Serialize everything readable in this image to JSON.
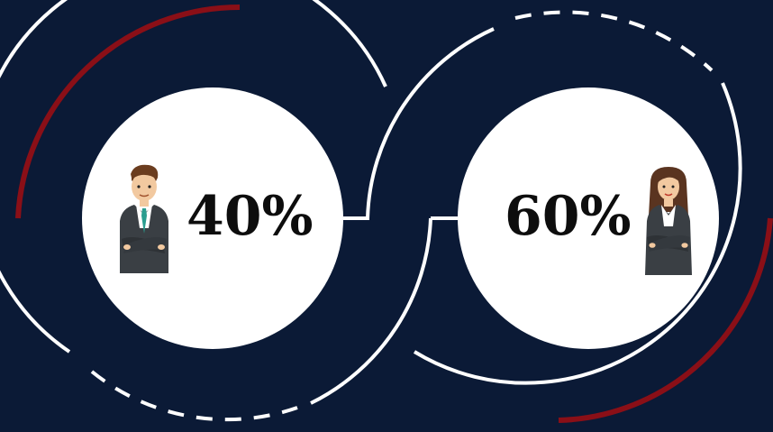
{
  "colors": {
    "background": "#0b1a36",
    "ring": "#ffffff",
    "accent": "#8a0f17",
    "circle": "#ffffff",
    "text": "#0d0d0d"
  },
  "left": {
    "value": "40%",
    "icon": "male-businessman-icon",
    "share": 0.4
  },
  "right": {
    "value": "60%",
    "icon": "female-businesswoman-icon",
    "share": 0.6
  }
}
